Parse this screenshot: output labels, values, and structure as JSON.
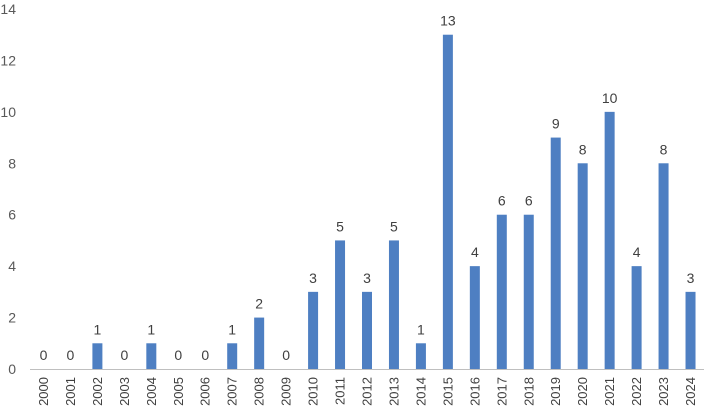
{
  "chart_data": {
    "type": "bar",
    "title": "",
    "xlabel": "",
    "ylabel": "",
    "categories": [
      "2000",
      "2001",
      "2002",
      "2003",
      "2004",
      "2005",
      "2006",
      "2007",
      "2008",
      "2009",
      "2010",
      "2011",
      "2012",
      "2013",
      "2014",
      "2015",
      "2016",
      "2017",
      "2018",
      "2019",
      "2020",
      "2021",
      "2022",
      "2023",
      "2024"
    ],
    "values": [
      0,
      0,
      1,
      0,
      1,
      0,
      0,
      1,
      2,
      0,
      3,
      5,
      3,
      5,
      1,
      13,
      4,
      6,
      6,
      9,
      8,
      10,
      4,
      8,
      3
    ],
    "ylim": [
      0,
      14
    ],
    "yticks": [
      0,
      2,
      4,
      6,
      8,
      10,
      12,
      14
    ],
    "grid": false,
    "legend": "none",
    "data_labels": true,
    "bar_color": "#4e7fc2"
  }
}
